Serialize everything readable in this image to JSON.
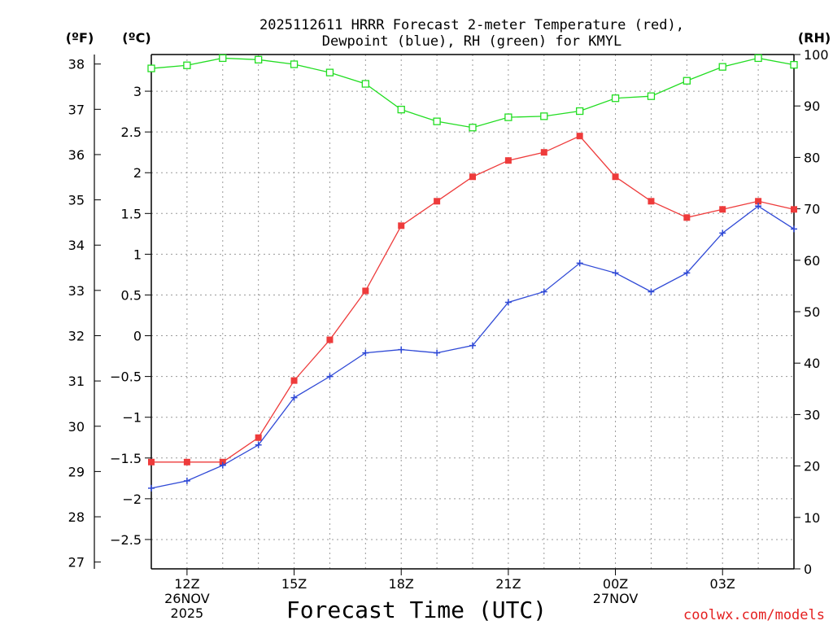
{
  "chart_data": {
    "type": "line",
    "title_line1": "2025112611 HRRR Forecast 2-meter Temperature (red),",
    "title_line2": "Dewpoint (blue), RH (green) for KMYL",
    "xlabel": "Forecast Time (UTC)",
    "credit": "coolwx.com/models",
    "unit_labels": {
      "fahrenheit": "(ºF)",
      "celsius": "(ºC)",
      "rh": "(RH)"
    },
    "xlim": [
      11,
      29
    ],
    "x_ticks": [
      {
        "x": 12,
        "lines": [
          "12Z",
          "26NOV",
          "2025"
        ]
      },
      {
        "x": 15,
        "lines": [
          "15Z"
        ]
      },
      {
        "x": 18,
        "lines": [
          "18Z"
        ]
      },
      {
        "x": 21,
        "lines": [
          "21Z"
        ]
      },
      {
        "x": 24,
        "lines": [
          "00Z",
          "27NOV"
        ]
      },
      {
        "x": 27,
        "lines": [
          "03Z"
        ]
      }
    ],
    "axes": {
      "celsius": {
        "ylim": [
          -2.86,
          3.45
        ],
        "ticks": [
          -2.5,
          -2,
          -1.5,
          -1,
          -0.5,
          0,
          0.5,
          1,
          1.5,
          2,
          2.5,
          3
        ]
      },
      "fahrenheit": {
        "ylim": [
          26.85,
          38.21
        ],
        "ticks": [
          27,
          28,
          29,
          30,
          31,
          32,
          33,
          34,
          35,
          36,
          37,
          38
        ]
      },
      "rh": {
        "ylim": [
          0,
          100
        ],
        "ticks": [
          0,
          10,
          20,
          30,
          40,
          50,
          60,
          70,
          80,
          90,
          100
        ]
      }
    },
    "hours": [
      11,
      12,
      13,
      14,
      15,
      16,
      17,
      18,
      19,
      20,
      21,
      22,
      23,
      24,
      25,
      26,
      27,
      28,
      29
    ],
    "series": [
      {
        "name": "Temperature",
        "axis": "celsius",
        "color": "#ee3b3b",
        "marker": "filled-square",
        "values": [
          -1.55,
          -1.55,
          -1.55,
          -1.25,
          -0.55,
          -0.05,
          0.55,
          1.35,
          1.65,
          1.95,
          2.15,
          2.25,
          2.45,
          1.95,
          1.65,
          1.45,
          1.55,
          1.65,
          1.55
        ]
      },
      {
        "name": "Dewpoint",
        "axis": "celsius",
        "color": "#2f49d6",
        "marker": "plus",
        "values": [
          -1.87,
          -1.78,
          -1.59,
          -1.34,
          -0.76,
          -0.5,
          -0.21,
          -0.17,
          -0.21,
          -0.12,
          0.41,
          0.54,
          0.89,
          0.77,
          0.54,
          0.77,
          1.26,
          1.59,
          1.31
        ]
      },
      {
        "name": "Relative Humidity",
        "axis": "rh",
        "color": "#22dd22",
        "marker": "open-square",
        "values": [
          97.3,
          97.9,
          99.3,
          99.0,
          98.1,
          96.5,
          94.3,
          89.3,
          87.0,
          85.8,
          87.8,
          88.0,
          89.0,
          91.5,
          91.9,
          94.9,
          97.6,
          99.3,
          98.0
        ]
      }
    ]
  }
}
